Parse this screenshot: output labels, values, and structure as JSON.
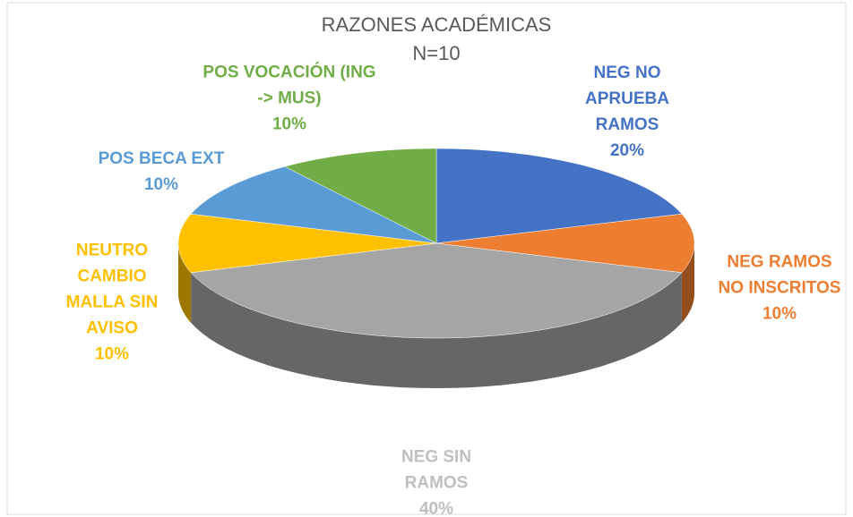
{
  "chart_data": {
    "type": "pie3d",
    "title": "RAZONES ACADÉMICAS N=10",
    "categories": [
      "NEG NO APRUEBA RAMOS",
      "NEG RAMOS NO INSCRITOS",
      "NEG SIN RAMOS",
      "NEUTRO CAMBIO MALLA SIN AVISO",
      "POS BECA EXT",
      "POS VOCACIÓN (ING -> MUS)"
    ],
    "values": [
      20,
      10,
      40,
      10,
      10,
      10
    ],
    "value_labels": [
      "20%",
      "10%",
      "40%",
      "10%",
      "10%",
      "10%"
    ],
    "colors": [
      "#4472c4",
      "#ed7d31",
      "#a5a5a5",
      "#ffc000",
      "#5b9bd5",
      "#70ad47"
    ]
  }
}
